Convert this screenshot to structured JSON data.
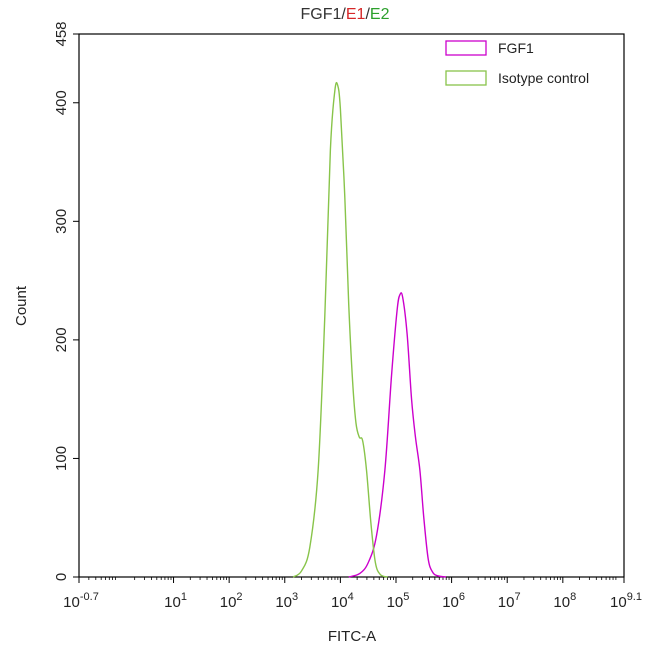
{
  "chart_data": {
    "type": "area",
    "title_parts": [
      {
        "text": "FGF1",
        "color": "#333333"
      },
      {
        "text": "/",
        "color": "#333333"
      },
      {
        "text": "E1",
        "color": "#d62728"
      },
      {
        "text": "/",
        "color": "#333333"
      },
      {
        "text": "E2",
        "color": "#2ca02c"
      }
    ],
    "xlabel": "FITC-A",
    "ylabel": "Count",
    "x_scale": "log10",
    "xlim": [
      -0.7,
      9.1
    ],
    "ylim": [
      0,
      458
    ],
    "x_ticks": [
      {
        "exp": -0.7,
        "base": "10",
        "sup": "-0.7"
      },
      {
        "exp": 1,
        "base": "10",
        "sup": "1"
      },
      {
        "exp": 2,
        "base": "10",
        "sup": "2"
      },
      {
        "exp": 3,
        "base": "10",
        "sup": "3"
      },
      {
        "exp": 4,
        "base": "10",
        "sup": "4"
      },
      {
        "exp": 5,
        "base": "10",
        "sup": "5"
      },
      {
        "exp": 6,
        "base": "10",
        "sup": "6"
      },
      {
        "exp": 7,
        "base": "10",
        "sup": "7"
      },
      {
        "exp": 8,
        "base": "10",
        "sup": "8"
      },
      {
        "exp": 9.1,
        "base": "10",
        "sup": "9.1"
      }
    ],
    "y_ticks": [
      {
        "value": 0,
        "label": "0"
      },
      {
        "value": 100,
        "label": "100"
      },
      {
        "value": 200,
        "label": "200"
      },
      {
        "value": 300,
        "label": "300"
      },
      {
        "value": 400,
        "label": "400"
      },
      {
        "value": 458,
        "label": "458"
      }
    ],
    "legend_position": "top-right",
    "series": [
      {
        "name": "FGF1",
        "color": "#cc00cc",
        "points": [
          [
            4.15,
            0
          ],
          [
            4.35,
            3
          ],
          [
            4.5,
            12
          ],
          [
            4.65,
            35
          ],
          [
            4.8,
            90
          ],
          [
            4.92,
            170
          ],
          [
            5.02,
            225
          ],
          [
            5.07,
            238
          ],
          [
            5.12,
            236
          ],
          [
            5.2,
            205
          ],
          [
            5.28,
            150
          ],
          [
            5.35,
            118
          ],
          [
            5.43,
            90
          ],
          [
            5.5,
            50
          ],
          [
            5.58,
            15
          ],
          [
            5.66,
            4
          ],
          [
            5.75,
            1
          ],
          [
            5.9,
            0
          ]
        ]
      },
      {
        "name": "Isotype control",
        "color": "#88c44a",
        "points": [
          [
            3.15,
            0
          ],
          [
            3.3,
            5
          ],
          [
            3.45,
            25
          ],
          [
            3.6,
            90
          ],
          [
            3.72,
            220
          ],
          [
            3.82,
            360
          ],
          [
            3.9,
            410
          ],
          [
            3.95,
            415
          ],
          [
            4.0,
            395
          ],
          [
            4.08,
            320
          ],
          [
            4.15,
            230
          ],
          [
            4.22,
            165
          ],
          [
            4.28,
            130
          ],
          [
            4.34,
            118
          ],
          [
            4.4,
            115
          ],
          [
            4.47,
            90
          ],
          [
            4.55,
            45
          ],
          [
            4.63,
            12
          ],
          [
            4.72,
            2
          ],
          [
            4.85,
            0
          ]
        ]
      }
    ]
  }
}
